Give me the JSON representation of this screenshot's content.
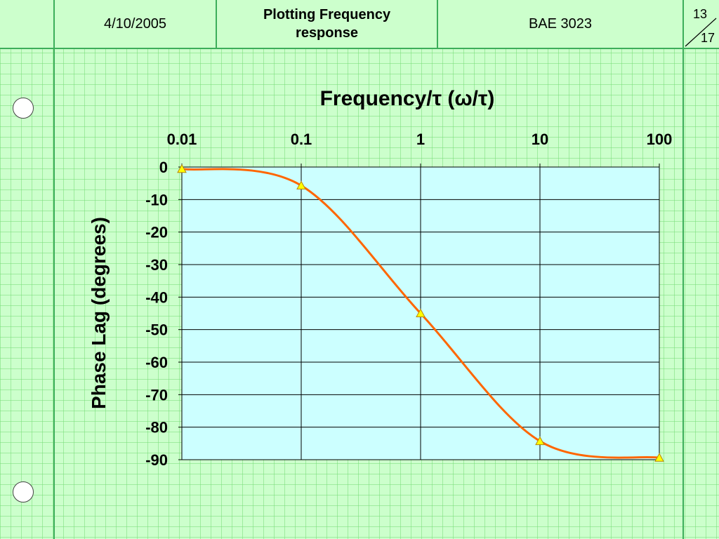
{
  "header": {
    "date": "4/10/2005",
    "title": "Plotting Frequency response",
    "course": "BAE 3023",
    "page_current": "13",
    "page_total": "17"
  },
  "colors": {
    "paper": "#ccffcc",
    "plot_background": "#ccffff",
    "curve": "#ff6600",
    "marker": "#ffff00",
    "rule_line": "#3cae5a"
  },
  "chart_data": {
    "type": "line",
    "title": "Frequency/τ (ω/τ)",
    "xlabel": "Frequency/τ (ω/τ)",
    "ylabel": "Phase Lag (degrees)",
    "xscale": "log",
    "x_axis_position": "top",
    "xlim": [
      0.01,
      100
    ],
    "ylim": [
      -90,
      0
    ],
    "xticks": [
      "0.01",
      "0.1",
      "1",
      "10",
      "100"
    ],
    "yticks": [
      "0",
      "-10",
      "-20",
      "-30",
      "-40",
      "-50",
      "-60",
      "-70",
      "-80",
      "-90"
    ],
    "grid": true,
    "legend": "none",
    "series": [
      {
        "x": [
          0.01,
          0.1,
          1,
          10,
          100
        ],
        "y": [
          -0.6,
          -5.7,
          -45,
          -84.3,
          -89.4
        ],
        "marker": "triangle"
      }
    ]
  }
}
